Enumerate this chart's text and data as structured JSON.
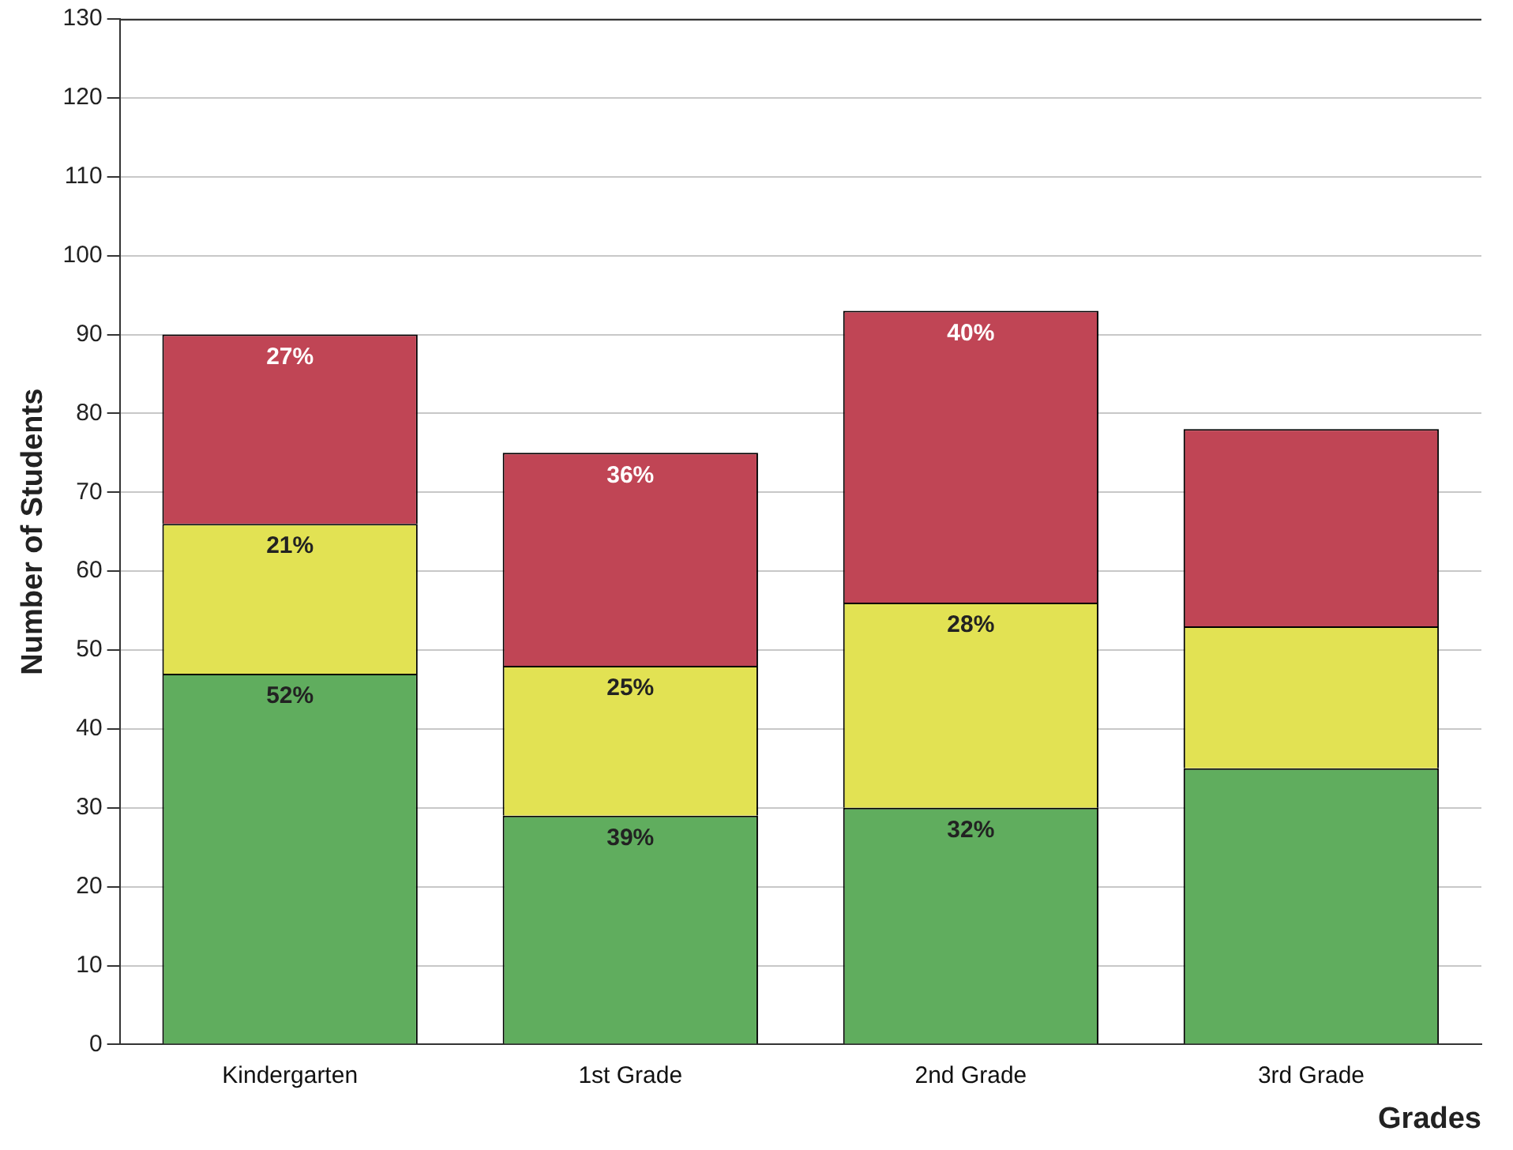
{
  "chart_data": {
    "type": "bar",
    "stacked": true,
    "xlabel": "Grades",
    "ylabel": "Number of Students",
    "categories": [
      "Kindergarten",
      "1st Grade",
      "2nd Grade",
      "3rd Grade"
    ],
    "series": [
      {
        "color": "#60ad5e",
        "values": [
          47,
          29,
          30,
          35
        ]
      },
      {
        "color": "#e2e253",
        "values": [
          19,
          19,
          26,
          18
        ]
      },
      {
        "color": "#c04555",
        "values": [
          24,
          27,
          37,
          25
        ]
      }
    ],
    "annotations": [
      {
        "text": "52%",
        "x": "Kindergarten",
        "y": 47
      },
      {
        "text": "21%",
        "x": "Kindergarten",
        "y": 66
      },
      {
        "text": "27%",
        "x": "Kindergarten",
        "y": 90
      },
      {
        "text": "39%",
        "x": "1st Grade",
        "y": 29
      },
      {
        "text": "25%",
        "x": "1st Grade",
        "y": 48
      },
      {
        "text": "36%",
        "x": "1st Grade",
        "y": 75
      },
      {
        "text": "32%",
        "x": "2nd Grade",
        "y": 30
      },
      {
        "text": "28%",
        "x": "2nd Grade",
        "y": 56
      },
      {
        "text": "40%",
        "x": "2nd Grade",
        "y": 93
      }
    ],
    "ylim": [
      0,
      130
    ],
    "yticks": [
      0,
      10,
      20,
      30,
      40,
      50,
      60,
      70,
      80,
      90,
      100,
      110,
      120,
      130
    ],
    "grid": "y",
    "legend": false
  }
}
